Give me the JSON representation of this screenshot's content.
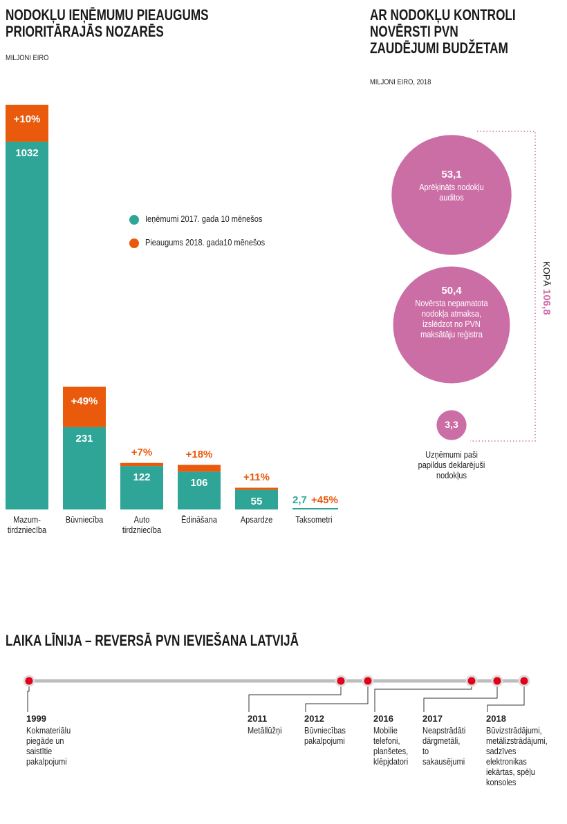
{
  "chart_data": [
    {
      "type": "stacked-bar",
      "title": "NODOKĻU IEŅĒMUMU PIEAUGUMS\nPRIORITĀRAJĀS NOZARĒS",
      "subtitle": "MILJONI EIRO",
      "categories": [
        "Mazum-\ntirdzniecība",
        "Būvniecība",
        "Auto\ntirdzniecība",
        "Ēdināšana",
        "Apsardze",
        "Taksometri"
      ],
      "ylim": [
        0,
        1125
      ],
      "series": [
        {
          "name": "Ieņēmumi 2017. gada 10 mēnešos",
          "color": "#2ea597",
          "values": [
            1032,
            231,
            122,
            106,
            55,
            2.7
          ],
          "value_labels": [
            "1032",
            "231",
            "122",
            "106",
            "55",
            "2,7"
          ]
        },
        {
          "name": "Pieaugums 2018. gada10 mēnešos",
          "color": "#e95a0c",
          "values": [
            10,
            49,
            7,
            18,
            11,
            45
          ],
          "value_labels": [
            "+10%",
            "+49%",
            "+7%",
            "+18%",
            "+11%",
            "+45%"
          ]
        }
      ]
    },
    {
      "type": "bubble",
      "title": "AR NODOKĻU KONTROLI\nNOVĒRSTI PVN\nZAUDĒJUMI BUDŽETAM",
      "subtitle": "MILJONI EIRO, 2018",
      "color": "#cc6ea6",
      "values": [
        53.1,
        50.4,
        3.3
      ],
      "value_labels": [
        "53,1",
        "50,4",
        "3,3"
      ],
      "descriptions": [
        "Aprēķināts nodokļu\nauditos",
        "Novērsta nepamatota\nnodokļa atmaksa,\nizslēdzot no PVN\nmaksātāju reģistra",
        "Uzņēmumi paši\npapildus deklarējuši\nnodokļus"
      ],
      "total_label": "KOPĀ",
      "total": "106,8"
    }
  ],
  "timeline": {
    "title": "LAIKA LĪNIJA – REVERSĀ PVN IEVIEŠANA LATVIJĀ",
    "events": [
      {
        "year": "1999",
        "text": "Kokmateriālu\npiegāde un\nsaistītie\npakalpojumi"
      },
      {
        "year": "2011",
        "text": "Metāllūžņi"
      },
      {
        "year": "2012",
        "text": "Būvniecības\npakalpojumi"
      },
      {
        "year": "2016",
        "text": "Mobilie\ntelefoni,\nplanšetes,\nklēpjdatori"
      },
      {
        "year": "2017",
        "text": "Neapstrādāti\ndārgmetāli,\nto\nsakausējumi"
      },
      {
        "year": "2018",
        "text": "Būvizstrādājumi,\nmetālizstrādājumi,\nsadzīves\nelektronikas\niekārtas, spēļu\nkonsoles"
      }
    ]
  }
}
